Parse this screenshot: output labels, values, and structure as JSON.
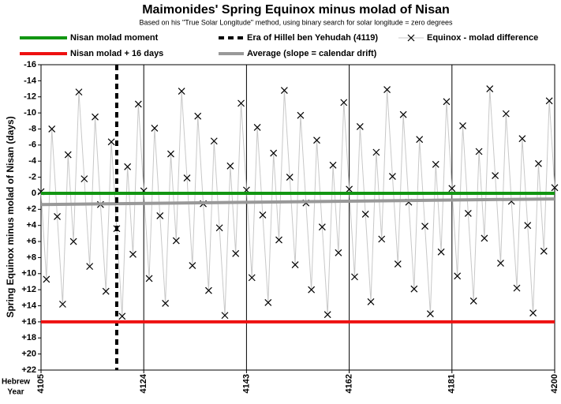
{
  "chart_data": {
    "type": "line",
    "title": "Maimonides' Spring Equinox minus molad of Nisan",
    "subtitle": "Based on his \"True Solar Longitude\" method, using binary search for solar longitude = zero degrees",
    "y_label": "Spring Equinox minus molad of Nisan (days)",
    "x_label": [
      "Hebrew",
      "Year"
    ],
    "xlim": [
      4105,
      4200
    ],
    "xticks": [
      4105,
      4124,
      4143,
      4162,
      4181,
      4200
    ],
    "ylim": [
      -16,
      22
    ],
    "y_inverted": true,
    "yticks": [
      -16,
      -14,
      -12,
      -10,
      -8,
      -6,
      -4,
      -2,
      0,
      {
        "value": 2,
        "label": "+2"
      },
      {
        "value": 4,
        "label": "+4"
      },
      {
        "value": 6,
        "label": "+6"
      },
      {
        "value": 8,
        "label": "+8"
      },
      {
        "value": 10,
        "label": "+10"
      },
      {
        "value": 12,
        "label": "+12"
      },
      {
        "value": 14,
        "label": "+14"
      },
      {
        "value": 16,
        "label": "+16"
      },
      {
        "value": 18,
        "label": "+18"
      },
      {
        "value": 20,
        "label": "+20"
      },
      {
        "value": 22,
        "label": "+22"
      }
    ],
    "x_grid": true,
    "series": [
      {
        "name": "Nisan molad moment",
        "color": "#129612",
        "x": [
          4105,
          4200
        ],
        "values": [
          0,
          0
        ]
      },
      {
        "name": "Nisan molad + 16 days",
        "color": "#ee1111",
        "x": [
          4105,
          4200
        ],
        "values": [
          16,
          16
        ]
      },
      {
        "name": "Era of Hillel ben Yehudah (4119)",
        "color": "#000000",
        "style": "dashed-vertical",
        "x": [
          4119
        ]
      },
      {
        "name": "Average (slope = calendar drift)",
        "color": "#999999",
        "x": [
          4105,
          4200
        ],
        "values": [
          1.4,
          0.7
        ]
      },
      {
        "name": "Equinox - molad difference",
        "color": "#000000",
        "line_color": "#c8c8c8",
        "marker": "x",
        "x": [
          4105,
          4106,
          4107,
          4108,
          4109,
          4110,
          4111,
          4112,
          4113,
          4114,
          4115,
          4116,
          4117,
          4118,
          4119,
          4120,
          4121,
          4122,
          4123,
          4124,
          4125,
          4126,
          4127,
          4128,
          4129,
          4130,
          4131,
          4132,
          4133,
          4134,
          4135,
          4136,
          4137,
          4138,
          4139,
          4140,
          4141,
          4142,
          4143,
          4144,
          4145,
          4146,
          4147,
          4148,
          4149,
          4150,
          4151,
          4152,
          4153,
          4154,
          4155,
          4156,
          4157,
          4158,
          4159,
          4160,
          4161,
          4162,
          4163,
          4164,
          4165,
          4166,
          4167,
          4168,
          4169,
          4170,
          4171,
          4172,
          4173,
          4174,
          4175,
          4176,
          4177,
          4178,
          4179,
          4180,
          4181,
          4182,
          4183,
          4184,
          4185,
          4186,
          4187,
          4188,
          4189,
          4190,
          4191,
          4192,
          4193,
          4194,
          4195,
          4196,
          4197,
          4198,
          4199,
          4200
        ],
        "values": [
          -0.2,
          10.7,
          -8.0,
          2.9,
          13.8,
          -4.8,
          6.0,
          -12.6,
          -1.8,
          9.1,
          -9.5,
          1.4,
          12.2,
          -6.4,
          4.4,
          15.3,
          -3.3,
          7.6,
          -11.1,
          -0.3,
          10.6,
          -8.1,
          2.8,
          13.7,
          -4.9,
          5.9,
          -12.7,
          -1.9,
          9.0,
          -9.6,
          1.3,
          12.1,
          -6.5,
          4.3,
          15.2,
          -3.4,
          7.5,
          -11.2,
          -0.4,
          10.5,
          -8.2,
          2.7,
          13.6,
          -5.0,
          5.8,
          -12.8,
          -2.0,
          8.9,
          -9.7,
          1.2,
          12.0,
          -6.6,
          4.2,
          15.1,
          -3.5,
          7.4,
          -11.3,
          -0.5,
          10.4,
          -8.3,
          2.6,
          13.5,
          -5.1,
          5.7,
          -12.9,
          -2.1,
          8.8,
          -9.8,
          1.1,
          11.9,
          -6.7,
          4.1,
          15.0,
          -3.6,
          7.3,
          -11.4,
          -0.6,
          10.3,
          -8.4,
          2.5,
          13.4,
          -5.2,
          5.6,
          -13.0,
          -2.2,
          8.7,
          -9.9,
          1.0,
          11.8,
          -6.8,
          4.0,
          14.9,
          -3.7,
          7.2,
          -11.5,
          -0.7
        ]
      }
    ]
  }
}
